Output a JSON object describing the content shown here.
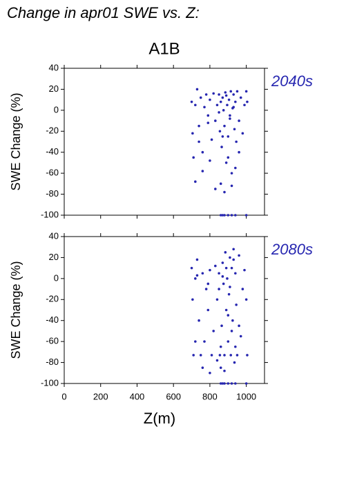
{
  "chart_data": [
    {
      "type": "scatter",
      "title": "Change in apr01 SWE vs. Z:",
      "subtitle": "A1B",
      "annotation": "2040s",
      "ylabel": "SWE Change (%)",
      "color": "#2626b0",
      "xlim": [
        0,
        1100
      ],
      "xticks": [
        0,
        200,
        400,
        600,
        800,
        1000
      ],
      "ylim": [
        -100,
        40
      ],
      "yticks": [
        40,
        20,
        0,
        -20,
        -40,
        -60,
        -80,
        -100
      ],
      "x": [
        700,
        705,
        710,
        720,
        730,
        740,
        750,
        760,
        770,
        780,
        790,
        800,
        810,
        820,
        830,
        840,
        850,
        855,
        860,
        865,
        870,
        875,
        880,
        885,
        890,
        895,
        900,
        905,
        910,
        915,
        920,
        925,
        930,
        935,
        940,
        945,
        950,
        960,
        970,
        980,
        990,
        1000,
        1005,
        720,
        760,
        800,
        830,
        860,
        880,
        900,
        920,
        940,
        960,
        740,
        790,
        850,
        870,
        890,
        910,
        930,
        860,
        870,
        880,
        900,
        920,
        940,
        1000
      ],
      "values": [
        8,
        -22,
        -45,
        5,
        20,
        -15,
        12,
        -40,
        3,
        15,
        -5,
        10,
        -28,
        16,
        -10,
        5,
        15,
        -20,
        8,
        -35,
        12,
        0,
        -15,
        17,
        -50,
        5,
        -25,
        10,
        -5,
        18,
        -60,
        2,
        15,
        -18,
        8,
        -30,
        18,
        -10,
        12,
        -22,
        5,
        18,
        8,
        -68,
        -58,
        -48,
        -75,
        -70,
        -78,
        -45,
        -72,
        -55,
        -40,
        -30,
        -12,
        -2,
        -25,
        14,
        -8,
        3,
        -100,
        -100,
        -100,
        -100,
        -100,
        -100,
        -100
      ]
    },
    {
      "type": "scatter",
      "annotation": "2080s",
      "ylabel": "SWE Change (%)",
      "xlabel": "Z(m)",
      "color": "#2626b0",
      "xlim": [
        0,
        1100
      ],
      "xticks": [
        0,
        200,
        400,
        600,
        800,
        1000
      ],
      "ylim": [
        -100,
        40
      ],
      "yticks": [
        40,
        20,
        0,
        -20,
        -40,
        -60,
        -80,
        -100
      ],
      "x": [
        700,
        705,
        710,
        720,
        730,
        740,
        750,
        760,
        770,
        780,
        790,
        800,
        810,
        820,
        830,
        840,
        850,
        855,
        860,
        865,
        870,
        875,
        880,
        885,
        890,
        895,
        900,
        905,
        910,
        915,
        920,
        925,
        930,
        935,
        940,
        945,
        950,
        960,
        970,
        980,
        990,
        1000,
        1005,
        720,
        760,
        800,
        840,
        860,
        880,
        900,
        920,
        940,
        960,
        730,
        790,
        850,
        870,
        890,
        910,
        930,
        860,
        870,
        880,
        900,
        920,
        940,
        1000
      ],
      "values": [
        10,
        -20,
        -73,
        0,
        18,
        -40,
        -73,
        5,
        -60,
        -10,
        -30,
        8,
        -73,
        -50,
        12,
        -20,
        5,
        -73,
        -85,
        -45,
        15,
        -5,
        -73,
        25,
        -30,
        0,
        -60,
        -15,
        20,
        -73,
        10,
        -40,
        28,
        -80,
        5,
        -25,
        -73,
        22,
        -55,
        -10,
        8,
        -20,
        -73,
        -60,
        -85,
        -90,
        -78,
        -65,
        -88,
        -35,
        -50,
        -65,
        -45,
        3,
        -5,
        -10,
        2,
        10,
        -8,
        18,
        -100,
        -100,
        -100,
        -100,
        -100,
        -100,
        -100
      ]
    }
  ]
}
